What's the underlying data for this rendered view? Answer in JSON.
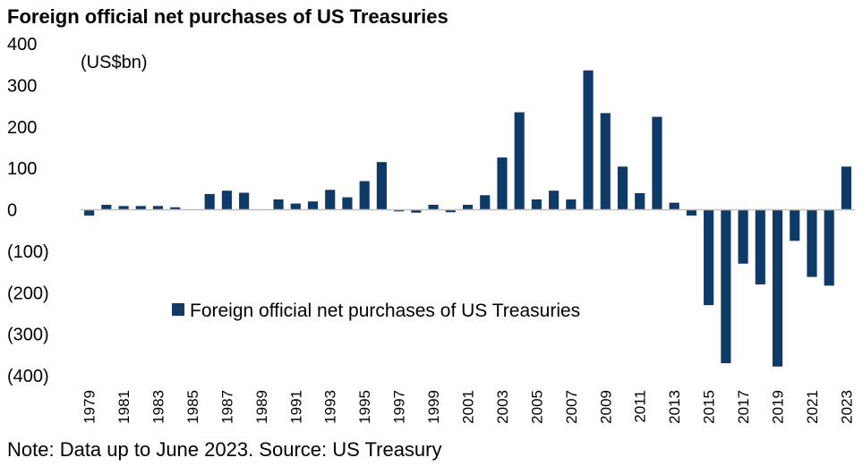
{
  "colors": {
    "bar": "#0f3a68",
    "axis": "#bfbfbf"
  },
  "chart_data": {
    "type": "bar",
    "title": "Foreign official net purchases of US Treasuries",
    "unit_label": "(US$bn)",
    "xlabel": "",
    "ylabel": "",
    "ylim": [
      -400,
      400
    ],
    "yticks": [
      400,
      300,
      200,
      100,
      0,
      -100,
      -200,
      -300,
      -400
    ],
    "ytick_labels": [
      "400",
      "300",
      "200",
      "100",
      "0",
      "(100)",
      "(200)",
      "(300)",
      "(400)"
    ],
    "legend_position": "center-left",
    "grid": false,
    "categories": [
      "1979",
      "1980",
      "1981",
      "1982",
      "1983",
      "1984",
      "1985",
      "1986",
      "1987",
      "1988",
      "1989",
      "1990",
      "1991",
      "1992",
      "1993",
      "1994",
      "1995",
      "1996",
      "1997",
      "1998",
      "1999",
      "2000",
      "2001",
      "2002",
      "2003",
      "2004",
      "2005",
      "2006",
      "2007",
      "2008",
      "2009",
      "2010",
      "2011",
      "2012",
      "2013",
      "2014",
      "2015",
      "2016",
      "2017",
      "2018",
      "2019",
      "2020",
      "2021",
      "2022",
      "2023"
    ],
    "xtick_labels": [
      "1979",
      "",
      "1981",
      "",
      "1983",
      "",
      "1985",
      "",
      "1987",
      "",
      "1989",
      "",
      "1991",
      "",
      "1993",
      "",
      "1995",
      "",
      "1997",
      "",
      "1999",
      "",
      "2001",
      "",
      "2003",
      "",
      "2005",
      "",
      "2007",
      "",
      "2009",
      "",
      "2011",
      "",
      "2013",
      "",
      "2015",
      "",
      "2017",
      "",
      "2019",
      "",
      "2021",
      "",
      "2023"
    ],
    "series": [
      {
        "name": "Foreign official net purchases of US Treasuries",
        "values": [
          -14,
          12,
          9,
          9,
          9,
          6,
          0,
          38,
          46,
          41,
          0,
          25,
          15,
          20,
          48,
          30,
          69,
          115,
          -4,
          -7,
          12,
          -6,
          12,
          35,
          126,
          235,
          25,
          46,
          25,
          336,
          233,
          104,
          40,
          224,
          17,
          -14,
          -230,
          -370,
          -130,
          -180,
          -378,
          -75,
          -162,
          -183,
          104
        ]
      }
    ]
  },
  "footer": {
    "note": "Note: Data up to June 2023. Source: US Treasury"
  }
}
